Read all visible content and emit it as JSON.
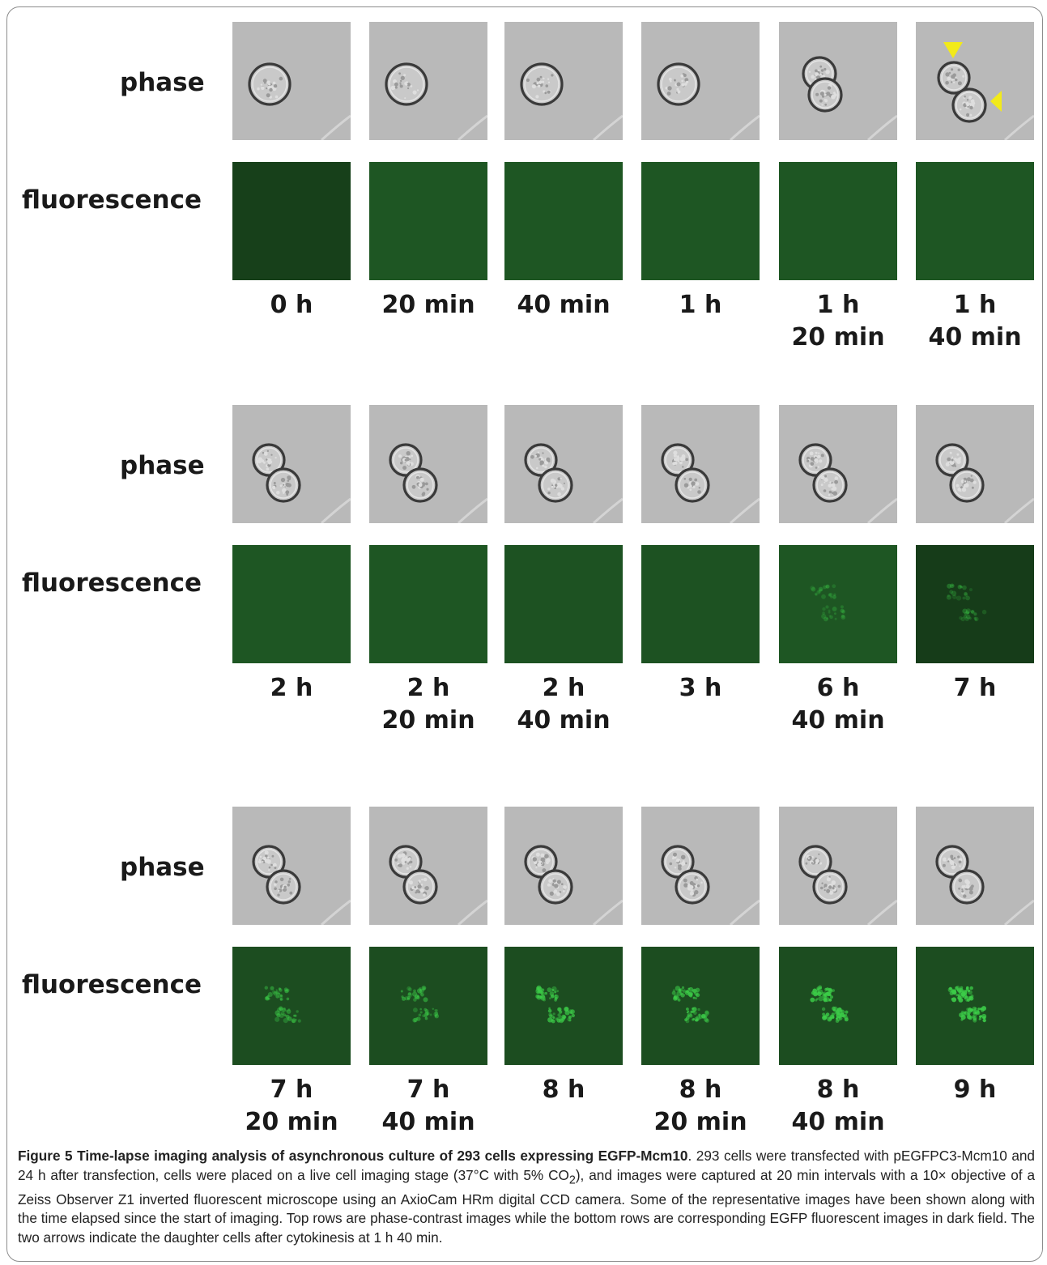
{
  "row_labels": {
    "phase": "phase",
    "fluorescence": "fluorescence"
  },
  "blocks": [
    {
      "frames": [
        {
          "line1": "0 h",
          "line2": "",
          "phase": "single",
          "fluor": {
            "bg": "#17401a",
            "glow": 0
          }
        },
        {
          "line1": "20 min",
          "line2": "",
          "phase": "single",
          "fluor": {
            "bg": "#1e5623",
            "glow": 0
          }
        },
        {
          "line1": "40 min",
          "line2": "",
          "phase": "single",
          "fluor": {
            "bg": "#1e5623",
            "glow": 0
          }
        },
        {
          "line1": "1 h",
          "line2": "",
          "phase": "single",
          "fluor": {
            "bg": "#1e5623",
            "glow": 0
          }
        },
        {
          "line1": "1 h",
          "line2": "20 min",
          "phase": "dividing",
          "fluor": {
            "bg": "#1e5623",
            "glow": 0
          }
        },
        {
          "line1": "1 h",
          "line2": "40 min",
          "phase": "divided",
          "arrows": true,
          "fluor": {
            "bg": "#1e5623",
            "glow": 0
          }
        }
      ]
    },
    {
      "frames": [
        {
          "line1": "2 h",
          "line2": "",
          "phase": "pair",
          "fluor": {
            "bg": "#1e5623",
            "glow": 0
          }
        },
        {
          "line1": "2 h",
          "line2": "20 min",
          "phase": "pair",
          "fluor": {
            "bg": "#1e5623",
            "glow": 0
          }
        },
        {
          "line1": "2 h",
          "line2": "40 min",
          "phase": "pair",
          "fluor": {
            "bg": "#1d5222",
            "glow": 0
          }
        },
        {
          "line1": "3 h",
          "line2": "",
          "phase": "pair",
          "fluor": {
            "bg": "#1d5222",
            "glow": 0
          }
        },
        {
          "line1": "6 h",
          "line2": "40 min",
          "phase": "pair",
          "fluor": {
            "bg": "#1e5623",
            "glow": 1
          }
        },
        {
          "line1": "7 h",
          "line2": "",
          "phase": "pair",
          "fluor": {
            "bg": "#163c19",
            "glow": 1
          }
        }
      ]
    },
    {
      "frames": [
        {
          "line1": "7 h",
          "line2": "20 min",
          "phase": "pair",
          "fluor": {
            "bg": "#1c4d20",
            "glow": 2
          }
        },
        {
          "line1": "7 h",
          "line2": "40 min",
          "phase": "pair",
          "fluor": {
            "bg": "#1c4d20",
            "glow": 2
          }
        },
        {
          "line1": "8 h",
          "line2": "",
          "phase": "pair",
          "fluor": {
            "bg": "#1c4d20",
            "glow": 3
          }
        },
        {
          "line1": "8 h",
          "line2": "20 min",
          "phase": "pair",
          "fluor": {
            "bg": "#1c4d20",
            "glow": 3
          }
        },
        {
          "line1": "8 h",
          "line2": "40 min",
          "phase": "pair",
          "fluor": {
            "bg": "#1c4d20",
            "glow": 4
          }
        },
        {
          "line1": "9 h",
          "line2": "",
          "phase": "pair",
          "fluor": {
            "bg": "#1c4d20",
            "glow": 4
          }
        }
      ]
    }
  ],
  "caption": {
    "bold": "Figure 5 Time-lapse imaging analysis of asynchronous culture of 293 cells expressing EGFP-Mcm10",
    "text_a": ". 293 cells were transfected with pEGFPC3-Mcm10 and 24 h after transfection, cells were placed on a live cell imaging stage (37°C with 5% CO",
    "sub": "2",
    "text_b": "), and images were captured at 20 min intervals with a 10× objective of a Zeiss Observer Z1 inverted fluorescent microscope using an AxioCam HRm digital CCD camera. Some of the representative images have been shown along with the time elapsed since the start of imaging. Top rows are phase-contrast images while the bottom rows are corresponding EGFP fluorescent images in dark field. The two arrows indicate the daughter cells after cytokinesis at 1 h 40 min."
  },
  "colors": {
    "phase_bg": "#b9b9b9",
    "cell_outline": "#3a3a3a",
    "arrow": "#f2ea1a",
    "glow": "#3ccc48"
  }
}
